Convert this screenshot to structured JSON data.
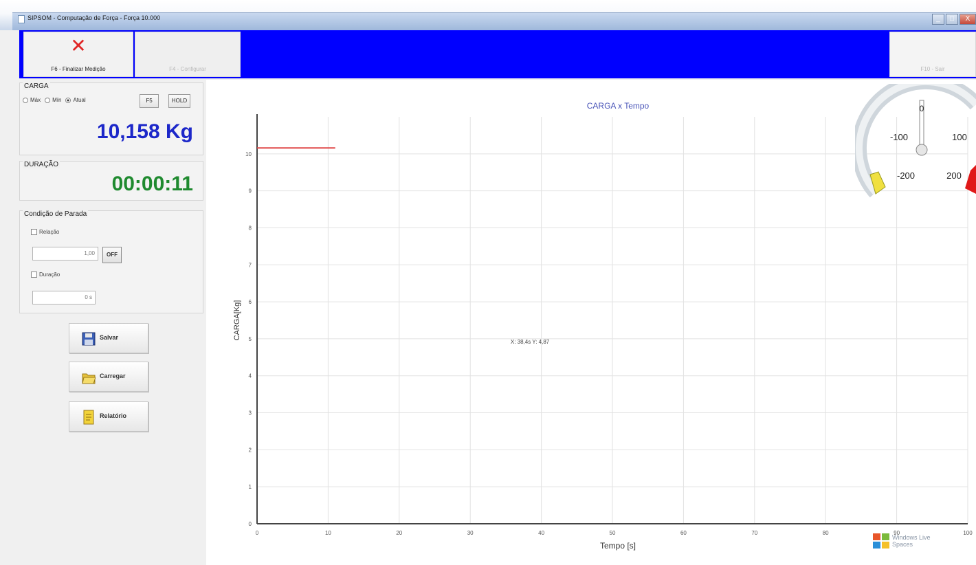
{
  "window": {
    "title": "SIPSOM - Computação de Força - Força 10.000",
    "controls": [
      "_",
      "□",
      "X"
    ]
  },
  "toolbar": {
    "finalize_label": "F6 - Finalizar Medição",
    "configure_label": "F4 - Configurar",
    "exit_label": "F10 - Sair",
    "background": "#0000ff"
  },
  "carga": {
    "title": "CARGA",
    "radios": [
      "Máx",
      "Mín",
      "Atual"
    ],
    "zero_label": "F5",
    "hold_label": "HOLD",
    "value": "10,158 Kg",
    "value_color": "#1c27c9"
  },
  "duracao": {
    "title": "DURAÇÃO",
    "value": "00:00:11",
    "value_color": "#1f8a2f"
  },
  "condicao": {
    "title": "Condição de Parada",
    "check1_label": "Relação",
    "input1_value": "1,00",
    "off_label": "OFF",
    "check2_label": "Duração",
    "input2_value": "0 s"
  },
  "buttons": {
    "salvar": "Salvar",
    "carregar": "Carregar",
    "relatorio": "Relatório"
  },
  "chart_data": {
    "type": "line",
    "title": "CARGA x Tempo",
    "xlabel": "Tempo [s]",
    "ylabel": "CARGA[Kg]",
    "xlim": [
      0,
      100
    ],
    "ylim": [
      0,
      11
    ],
    "x_ticks": [
      0,
      10,
      20,
      30,
      40,
      50,
      60,
      70,
      80,
      90,
      100
    ],
    "y_ticks": [
      0,
      1,
      2,
      3,
      4,
      5,
      6,
      7,
      8,
      9,
      10
    ],
    "grid": true,
    "series": [
      {
        "color": "#e04848",
        "x": [
          0,
          5,
          11
        ],
        "y": [
          10.16,
          10.16,
          10.16
        ]
      }
    ],
    "annotation": {
      "text": "X: 38,4s  Y: 4,87",
      "x": 38.4,
      "y": 4.87
    }
  },
  "gauge": {
    "labels": [
      "0",
      "-100",
      "100",
      "-200",
      "200"
    ],
    "low_color": "#f0e040",
    "high_color": "#e01818"
  },
  "watermark": {
    "line1": "Windows Live",
    "line2": "Spaces"
  }
}
